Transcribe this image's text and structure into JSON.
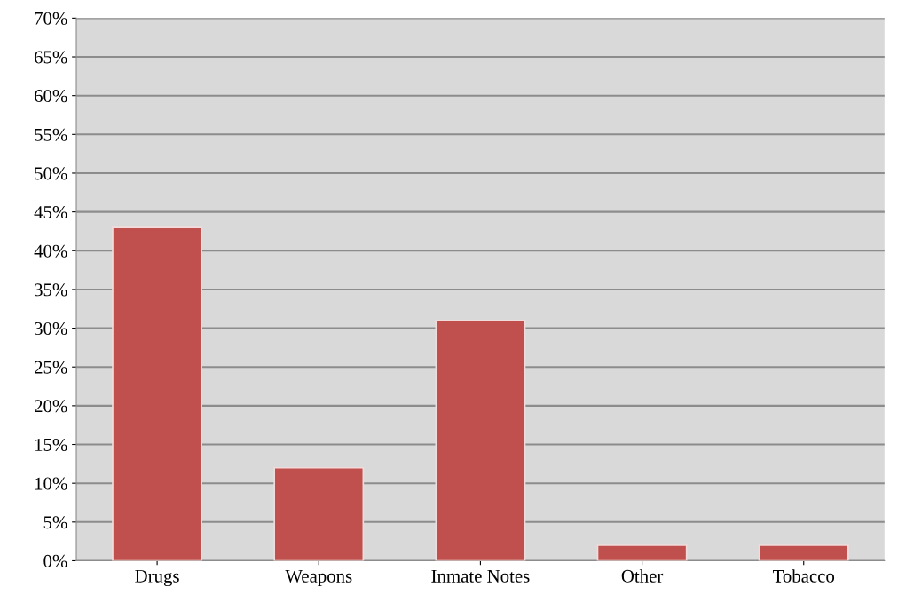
{
  "chart_data": {
    "type": "bar",
    "categories": [
      "Drugs",
      "Weapons",
      "Inmate Notes",
      "Other",
      "Tobacco"
    ],
    "series": [
      {
        "color": "#c0504d",
        "values": [
          43,
          12,
          31,
          2,
          2
        ]
      }
    ],
    "ylim": [
      0,
      70
    ],
    "yticks": [
      {
        "value": 0,
        "label": "0%"
      },
      {
        "value": 5,
        "label": "5%"
      },
      {
        "value": 10,
        "label": "10%"
      },
      {
        "value": 15,
        "label": "15%"
      },
      {
        "value": 20,
        "label": "20%"
      },
      {
        "value": 25,
        "label": "25%"
      },
      {
        "value": 30,
        "label": "30%"
      },
      {
        "value": 35,
        "label": "35%"
      },
      {
        "value": 40,
        "label": "40%"
      },
      {
        "value": 45,
        "label": "45%"
      },
      {
        "value": 50,
        "label": "50%"
      },
      {
        "value": 55,
        "label": "55%"
      },
      {
        "value": 60,
        "label": "60%"
      },
      {
        "value": 65,
        "label": "65%"
      },
      {
        "value": 70,
        "label": "70%"
      }
    ],
    "grid": "y",
    "legend": false
  }
}
